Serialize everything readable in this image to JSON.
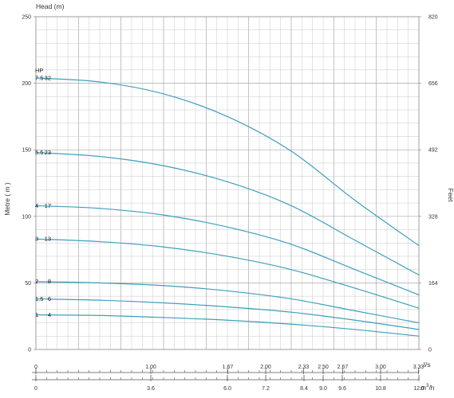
{
  "chart_data": {
    "type": "line",
    "title": "Head (m)",
    "ylabel_left": "Metre ( m )",
    "ylabel_right": "Feet",
    "ylim": [
      0,
      250
    ],
    "left_ticks": [
      "0",
      "50",
      "100",
      "150",
      "200",
      "250"
    ],
    "right_ticks": [
      "0",
      "164",
      "328",
      "492",
      "656",
      "820"
    ],
    "flow_axis_ls": {
      "unit": "l/s",
      "ticks": [
        "0",
        "1.00",
        "1.67",
        "2.00",
        "2.33",
        "2.50",
        "2.67",
        "3.00",
        "3.33"
      ],
      "values": [
        0,
        1.0,
        1.67,
        2.0,
        2.33,
        2.5,
        2.67,
        3.0,
        3.33
      ]
    },
    "flow_axis_m3h": {
      "unit": "m³/h",
      "unit_base": "m",
      "unit_sup": "3",
      "unit_tail": "/h",
      "ticks": [
        "0",
        "3.6",
        "6.0",
        "7.2",
        "8.4",
        "9.0",
        "9.6",
        "10.8",
        "12.0"
      ],
      "values": [
        0,
        3.6,
        6.0,
        7.2,
        8.4,
        9.0,
        9.6,
        10.8,
        12.0
      ]
    },
    "x_range_m3h": [
      0,
      12.0
    ],
    "grid": true,
    "line_color": "#3d9fbd",
    "series_header": "HP",
    "series": [
      {
        "hp": "7.5",
        "stages": "32",
        "x": [
          0,
          2,
          4,
          6,
          8,
          10,
          12
        ],
        "y": [
          204,
          201,
          192,
          175,
          149,
          112,
          78
        ]
      },
      {
        "hp": "5.5",
        "stages": "23",
        "x": [
          0,
          2,
          4,
          6,
          8,
          10,
          12
        ],
        "y": [
          148,
          145,
          138,
          126,
          108,
          82,
          56
        ]
      },
      {
        "hp": "4",
        "stages": "17",
        "x": [
          0,
          2,
          4,
          6,
          8,
          10,
          12
        ],
        "y": [
          108,
          106,
          101,
          92,
          79,
          60,
          41
        ]
      },
      {
        "hp": "3",
        "stages": "13",
        "x": [
          0,
          2,
          4,
          6,
          8,
          10,
          12
        ],
        "y": [
          83,
          81,
          77,
          70,
          60,
          46,
          31
        ]
      },
      {
        "hp": "2",
        "stages": "8",
        "x": [
          0,
          2,
          4,
          6,
          8,
          10,
          12
        ],
        "y": [
          51,
          50,
          48,
          44,
          38,
          29,
          20
        ]
      },
      {
        "hp": "1.5",
        "stages": "6",
        "x": [
          0,
          2,
          4,
          6,
          8,
          10,
          12
        ],
        "y": [
          38,
          37,
          35,
          32,
          28,
          22,
          15
        ]
      },
      {
        "hp": "1",
        "stages": "4",
        "x": [
          0,
          2,
          4,
          6,
          8,
          10,
          12
        ],
        "y": [
          26,
          25.5,
          24,
          22,
          19,
          15,
          10
        ]
      }
    ]
  }
}
